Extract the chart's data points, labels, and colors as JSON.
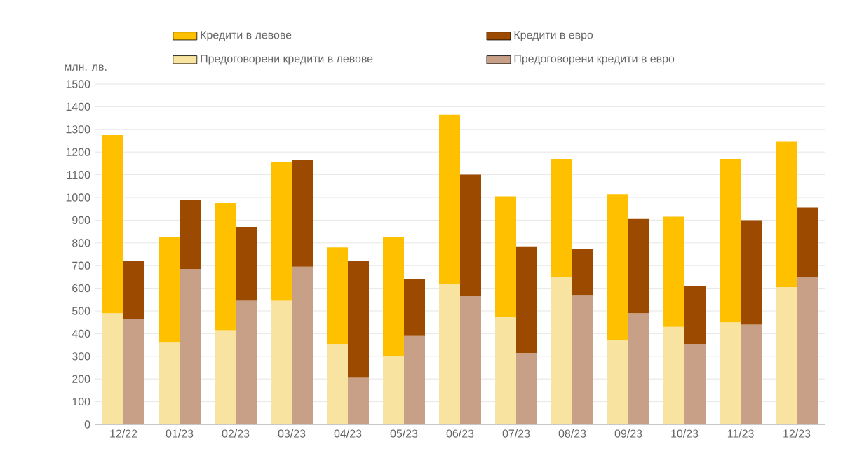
{
  "chart_data": [
    {
      "type": "bar",
      "stacked": true,
      "ylabel": "млн. лв.",
      "categories": [
        "12/22",
        "01/23",
        "02/23",
        "03/23",
        "04/23",
        "05/23",
        "06/23",
        "07/23",
        "08/23",
        "09/23",
        "10/23",
        "11/23",
        "12/23"
      ],
      "series": [
        {
          "name": "Предоговорени кредити в левове",
          "color": "#f9e3a0",
          "values": [
            490,
            360,
            415,
            545,
            355,
            300,
            620,
            475,
            650,
            370,
            430,
            450,
            605
          ]
        },
        {
          "name": "Кредити в левове",
          "color": "#ffc000",
          "values": [
            785,
            465,
            560,
            610,
            425,
            525,
            745,
            530,
            520,
            645,
            485,
            720,
            640
          ]
        }
      ],
      "ylim": [
        0,
        1500
      ],
      "yticks": [
        0,
        100,
        200,
        300,
        400,
        500,
        600,
        700,
        800,
        900,
        1000,
        1100,
        1200,
        1300,
        1400,
        1500
      ],
      "grid": "y",
      "legend": "top"
    },
    {
      "type": "bar",
      "stacked": true,
      "categories": [
        null,
        null,
        null,
        null,
        null,
        null,
        null,
        null,
        null,
        null,
        null,
        null,
        null
      ],
      "series": [
        {
          "name": "Предоговорени кредити в евро",
          "color": "#c8a088",
          "values": [
            465,
            685,
            545,
            695,
            205,
            390,
            565,
            315,
            570,
            490,
            355,
            440,
            650
          ]
        },
        {
          "name": "Кредити в евро",
          "color": "#9c4a00",
          "values": [
            255,
            305,
            325,
            470,
            515,
            250,
            535,
            470,
            205,
            415,
            255,
            460,
            305
          ]
        }
      ],
      "ylim": [
        0,
        1500
      ],
      "legend": "top"
    }
  ]
}
